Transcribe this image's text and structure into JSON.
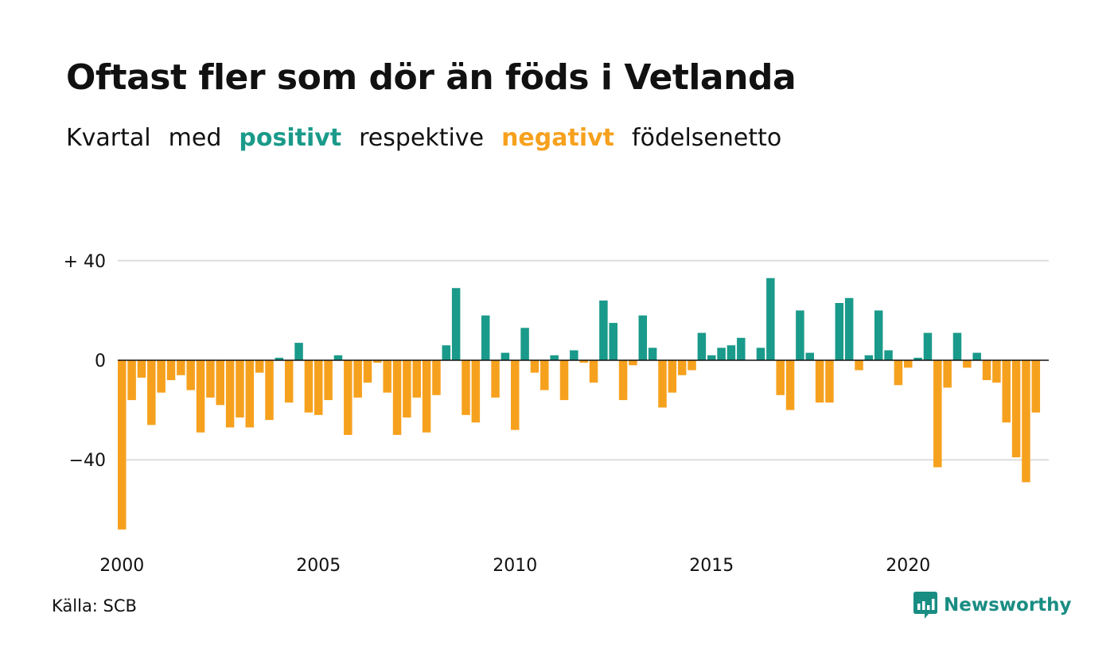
{
  "chart_data": {
    "type": "bar",
    "title": "Oftast fler som dör än föds i Vetlanda",
    "subtitle": [
      "Kvartal",
      "med",
      "positivt",
      "respektive",
      "negativt",
      "födelsenetto"
    ],
    "x_start": 2000,
    "x_step": 0.25,
    "x_ticks": [
      "2000",
      "2005",
      "2010",
      "2015",
      "2020"
    ],
    "y_ticks": [
      {
        "value": 40,
        "label": "+ 40"
      },
      {
        "value": 0,
        "label": "0"
      },
      {
        "value": -40,
        "label": "−40"
      }
    ],
    "ylim": [
      -70,
      40
    ],
    "grid": true,
    "positive_color": "#1a9a8a",
    "negative_color": "#f6a11e",
    "values": [
      -68,
      -16,
      -7,
      -26,
      -13,
      -8,
      -6,
      -12,
      -29,
      -15,
      -18,
      -27,
      -23,
      -27,
      -5,
      -24,
      1,
      -17,
      7,
      -21,
      -22,
      -16,
      2,
      -30,
      -15,
      -9,
      -1,
      -13,
      -30,
      -23,
      -15,
      -29,
      -14,
      6,
      29,
      -22,
      -25,
      18,
      -15,
      3,
      -28,
      13,
      -5,
      -12,
      2,
      -16,
      4,
      -1,
      -9,
      24,
      15,
      -16,
      -2,
      18,
      5,
      -19,
      -13,
      -6,
      -4,
      11,
      2,
      5,
      6,
      9,
      0,
      5,
      33,
      -14,
      -20,
      20,
      3,
      -17,
      -17,
      23,
      25,
      -4,
      2,
      20,
      4,
      -10,
      -3,
      1,
      11,
      -43,
      -11,
      11,
      -3,
      3,
      -8,
      -9,
      -25,
      -39,
      -49,
      -21
    ]
  },
  "source": "Källa: SCB",
  "brand": "Newsworthy",
  "colors": {
    "text": "#111111",
    "grid": "#dddddd",
    "brand": "#1a8d83"
  }
}
